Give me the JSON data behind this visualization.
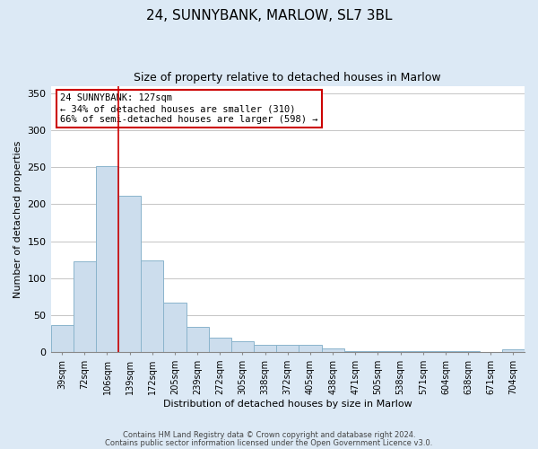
{
  "title": "24, SUNNYBANK, MARLOW, SL7 3BL",
  "subtitle": "Size of property relative to detached houses in Marlow",
  "xlabel": "Distribution of detached houses by size in Marlow",
  "ylabel": "Number of detached properties",
  "bar_labels": [
    "39sqm",
    "72sqm",
    "106sqm",
    "139sqm",
    "172sqm",
    "205sqm",
    "239sqm",
    "272sqm",
    "305sqm",
    "338sqm",
    "372sqm",
    "405sqm",
    "438sqm",
    "471sqm",
    "505sqm",
    "538sqm",
    "571sqm",
    "604sqm",
    "638sqm",
    "671sqm",
    "704sqm"
  ],
  "bar_heights": [
    37,
    123,
    252,
    212,
    124,
    67,
    34,
    20,
    15,
    10,
    10,
    10,
    5,
    2,
    2,
    2,
    2,
    2,
    2,
    0,
    4
  ],
  "bar_color": "#ccdded",
  "bar_edge_color": "#8ab4cc",
  "ylim": [
    0,
    360
  ],
  "yticks": [
    0,
    50,
    100,
    150,
    200,
    250,
    300,
    350
  ],
  "vline_color": "#cc0000",
  "annotation_text": "24 SUNNYBANK: 127sqm\n← 34% of detached houses are smaller (310)\n66% of semi-detached houses are larger (598) →",
  "annotation_box_color": "#ffffff",
  "annotation_edge_color": "#cc0000",
  "footnote1": "Contains HM Land Registry data © Crown copyright and database right 2024.",
  "footnote2": "Contains public sector information licensed under the Open Government Licence v3.0.",
  "bg_color": "#dce9f5",
  "plot_bg_color": "#ffffff",
  "title_fontsize": 11,
  "subtitle_fontsize": 9,
  "axis_label_fontsize": 8,
  "tick_fontsize": 7,
  "annotation_fontsize": 7.5
}
